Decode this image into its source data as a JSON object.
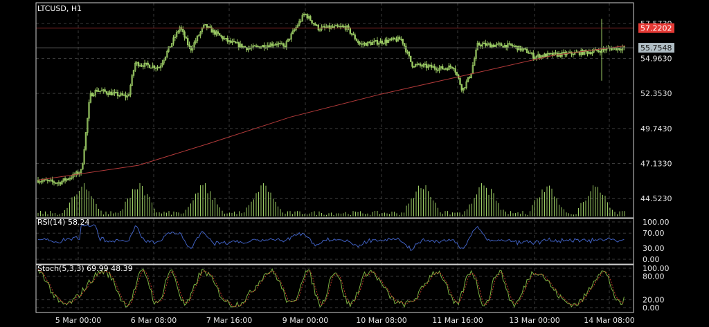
{
  "symbol_title": "LTCUSD, H1",
  "price_axis": {
    "ticks": [
      "57.5730",
      "54.9630",
      "52.3530",
      "49.7430",
      "47.1330",
      "44.5230"
    ],
    "tick_values": [
      57.573,
      54.963,
      52.353,
      49.743,
      47.133,
      44.523
    ],
    "ylim": [
      43.3,
      58.9
    ]
  },
  "price_tags": [
    {
      "label": "57.2202",
      "value": 57.2202,
      "color": "#e53935",
      "text_color": "#ffffff"
    },
    {
      "label": "55.7548",
      "value": 55.7548,
      "color": "#b0bec5",
      "text_color": "#1a1a1a"
    }
  ],
  "time_axis": [
    "5 Mar 00:00",
    "6 Mar 08:00",
    "7 Mar 16:00",
    "9 Mar 00:00",
    "10 Mar 08:00",
    "11 Mar 16:00",
    "13 Mar 00:00",
    "14 Mar 08:00"
  ],
  "rsi": {
    "label": "RSI(14) 58.24",
    "ticks": [
      "100.00",
      "70.00",
      "30.00",
      "0.00"
    ],
    "tick_values": [
      100,
      70,
      30,
      0
    ]
  },
  "stoch": {
    "label": "Stoch(5,3,3) 69.99 48.39",
    "ticks": [
      "100.00",
      "80.00",
      "20.00",
      "0.00"
    ],
    "tick_values": [
      100,
      80,
      20,
      0
    ]
  },
  "colors": {
    "background": "#000000",
    "candle": "#9ccc65",
    "grid": "#3a3a3a",
    "moving_average": "#b23a3a",
    "rsi_line": "#3f5fbf",
    "stoch_main": "#7cb342",
    "stoch_signal": "#c0392b"
  },
  "chart_data": {
    "type": "candlestick",
    "price_anchors": [
      {
        "x": 55,
        "price": 45.9
      },
      {
        "x": 85,
        "price": 45.7
      },
      {
        "x": 105,
        "price": 46.2
      },
      {
        "x": 118,
        "price": 46.6
      },
      {
        "x": 130,
        "price": 52.2
      },
      {
        "x": 140,
        "price": 52.6
      },
      {
        "x": 185,
        "price": 52.1
      },
      {
        "x": 195,
        "price": 54.6
      },
      {
        "x": 230,
        "price": 54.3
      },
      {
        "x": 260,
        "price": 57.3
      },
      {
        "x": 275,
        "price": 55.6
      },
      {
        "x": 295,
        "price": 57.4
      },
      {
        "x": 330,
        "price": 56.2
      },
      {
        "x": 360,
        "price": 55.7
      },
      {
        "x": 400,
        "price": 56.1
      },
      {
        "x": 410,
        "price": 55.8
      },
      {
        "x": 440,
        "price": 58.3
      },
      {
        "x": 460,
        "price": 57.2
      },
      {
        "x": 500,
        "price": 57.3
      },
      {
        "x": 520,
        "price": 56.0
      },
      {
        "x": 580,
        "price": 56.4
      },
      {
        "x": 595,
        "price": 54.5
      },
      {
        "x": 640,
        "price": 54.2
      },
      {
        "x": 655,
        "price": 54.4
      },
      {
        "x": 668,
        "price": 52.6
      },
      {
        "x": 680,
        "price": 53.8
      },
      {
        "x": 690,
        "price": 56.0
      },
      {
        "x": 740,
        "price": 55.9
      },
      {
        "x": 765,
        "price": 55.4
      },
      {
        "x": 770,
        "price": 55.1
      },
      {
        "x": 790,
        "price": 55.2
      },
      {
        "x": 820,
        "price": 55.3
      },
      {
        "x": 860,
        "price": 55.5
      },
      {
        "x": 880,
        "price": 55.7
      },
      {
        "x": 903,
        "price": 55.75
      }
    ],
    "moving_average": [
      {
        "x": 55,
        "price": 45.9
      },
      {
        "x": 200,
        "price": 47.0
      },
      {
        "x": 300,
        "price": 48.6
      },
      {
        "x": 420,
        "price": 50.6
      },
      {
        "x": 550,
        "price": 52.3
      },
      {
        "x": 680,
        "price": 53.8
      },
      {
        "x": 800,
        "price": 55.2
      },
      {
        "x": 903,
        "price": 55.9
      }
    ]
  }
}
